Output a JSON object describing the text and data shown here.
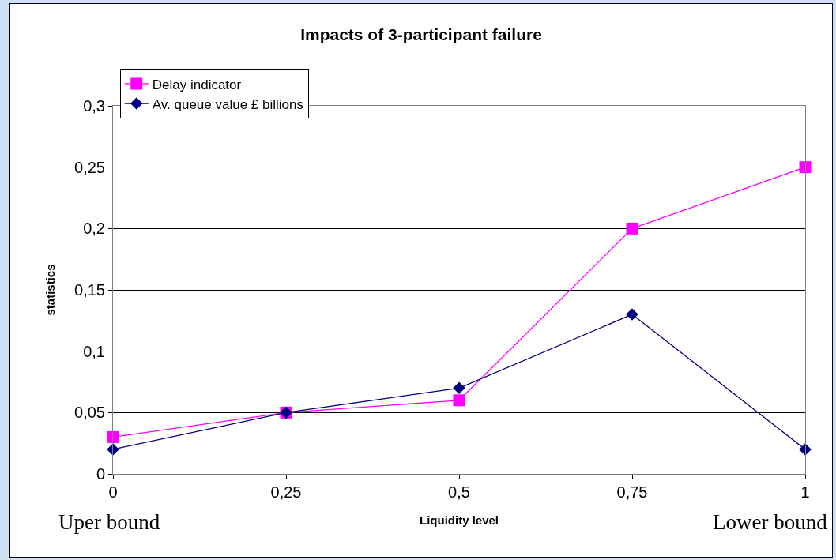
{
  "chart_data": {
    "type": "line",
    "title": "Impacts of 3-participant failure",
    "xlabel": "Liquidity level",
    "ylabel": "statistics",
    "x": [
      0,
      0.25,
      0.5,
      0.75,
      1
    ],
    "series": [
      {
        "name": "Delay indicator",
        "color": "#ff00ff",
        "marker": "square",
        "values": [
          0.03,
          0.05,
          0.06,
          0.2,
          0.25
        ]
      },
      {
        "name": "Av. queue value £ billions",
        "color": "#000080",
        "marker": "diamond",
        "values": [
          0.02,
          0.05,
          0.07,
          0.13,
          0.02
        ]
      }
    ],
    "xlim": [
      0,
      1
    ],
    "xticks": [
      0,
      {
        "value": 0.25,
        "label": "0,25"
      },
      {
        "value": 0.5,
        "label": "0,5"
      },
      {
        "value": 0.75,
        "label": "0,75"
      },
      1
    ],
    "ylim": [
      0,
      0.3
    ],
    "yticks": [
      0,
      {
        "value": 0.05,
        "label": "0,05"
      },
      {
        "value": 0.1,
        "label": "0,1"
      },
      {
        "value": 0.15,
        "label": "0,15"
      },
      {
        "value": 0.2,
        "label": "0,2"
      },
      {
        "value": 0.25,
        "label": "0,25"
      },
      {
        "value": 0.3,
        "label": "0,3"
      }
    ],
    "grid": "y",
    "legend": "top left",
    "line_style": "solid",
    "annotations": [
      "Uper bound",
      "Lower bound"
    ]
  }
}
